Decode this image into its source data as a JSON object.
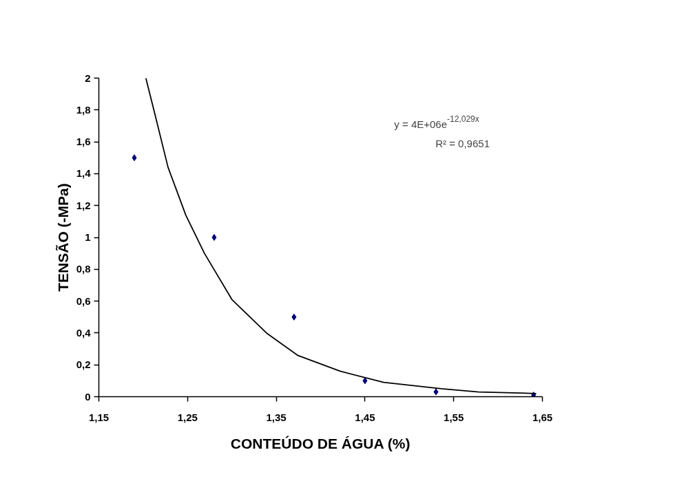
{
  "chart_data": {
    "type": "scatter",
    "xlabel": "CONTEÚDO DE ÁGUA (%)",
    "ylabel": "TENSÃO (-MPa)",
    "x": [
      1.19,
      1.28,
      1.37,
      1.45,
      1.53,
      1.64
    ],
    "series": [
      {
        "color": "#000080",
        "marker": "diamond",
        "values": [
          1.5,
          1.0,
          0.5,
          0.1,
          0.03,
          0.01
        ]
      },
      {
        "type": "line",
        "color": "#000000",
        "line_style": "solid",
        "x": [
          1.203,
          1.212,
          1.228,
          1.248,
          1.269,
          1.3,
          1.339,
          1.374,
          1.422,
          1.471,
          1.536,
          1.578,
          1.643
        ],
        "values": [
          2.0,
          1.8,
          1.44,
          1.14,
          0.9,
          0.61,
          0.4,
          0.26,
          0.16,
          0.09,
          0.05,
          0.03,
          0.02
        ]
      }
    ],
    "annotations": [
      "y = 4E+06e$^{-12,029x}$",
      "R² = 0,9651"
    ],
    "xlim": [
      1.15,
      1.65
    ],
    "xticks": [
      {
        "value": 1.15,
        "label": "1,15"
      },
      {
        "value": 1.25,
        "label": "1,25"
      },
      {
        "value": 1.35,
        "label": "1,35"
      },
      {
        "value": 1.45,
        "label": "1,45"
      },
      {
        "value": 1.55,
        "label": "1,55"
      },
      {
        "value": 1.65,
        "label": "1,65"
      }
    ],
    "ylim": [
      0,
      2
    ],
    "yticks": [
      0,
      {
        "value": 0.2,
        "label": "0,2"
      },
      {
        "value": 0.4,
        "label": "0,4"
      },
      {
        "value": 0.6,
        "label": "0,6"
      },
      {
        "value": 0.8,
        "label": "0,8"
      },
      1,
      {
        "value": 1.2,
        "label": "1,2"
      },
      {
        "value": 1.4,
        "label": "1,4"
      },
      {
        "value": 1.6,
        "label": "1,6"
      },
      {
        "value": 1.8,
        "label": "1,8"
      },
      2
    ],
    "grid": false
  }
}
